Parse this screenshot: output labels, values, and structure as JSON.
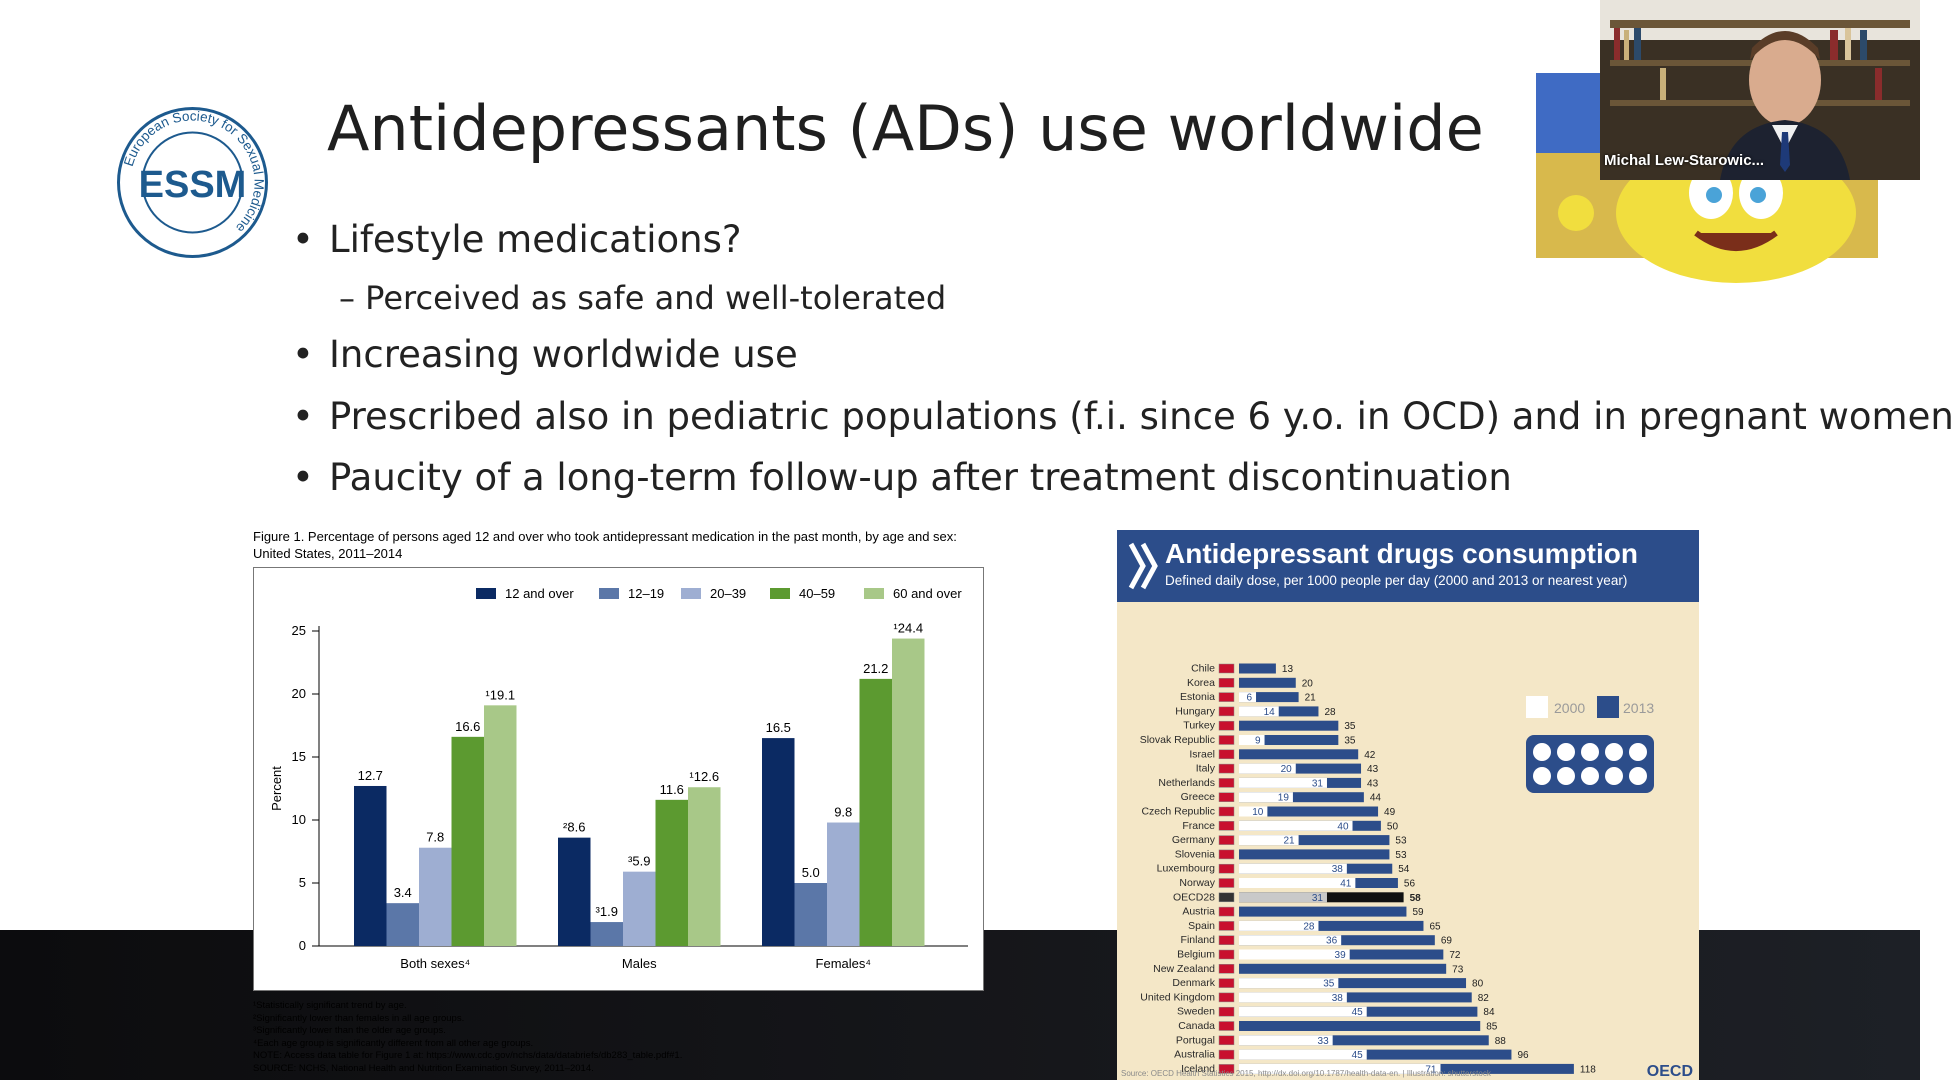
{
  "slide": {
    "title": "Antidepressants (ADs) use worldwide",
    "logo_text": "European Society for Sexual Medicine",
    "logo_letters": "ESSM",
    "bullets": [
      {
        "text": "Lifestyle medications?",
        "sub": "– Perceived as safe and well-tolerated"
      },
      {
        "text": "Increasing worldwide use"
      },
      {
        "text": "Prescribed also in pediatric populations (f.i. since 6 y.o. in OCD) and in pregnant women"
      },
      {
        "text": "Paucity of a long-term follow-up after treatment discontinuation"
      }
    ]
  },
  "us_figure": {
    "caption": "Figure 1. Percentage of persons aged 12 and over who took antidepressant medication in the past month, by age and sex: United States, 2011–2014",
    "notes": [
      "¹Statistically significant trend by age.",
      "²Significantly lower than females in all age groups.",
      "³Significantly lower than the older age groups.",
      "⁴Each age group is significantly different from all other age groups.",
      "NOTE: Access data table for Figure 1 at: https://www.cdc.gov/nchs/data/databriefs/db283_table.pdf#1.",
      "SOURCE: NCHS, National Health and Nutrition Examination Survey, 2011–2014."
    ]
  },
  "oecd_figure": {
    "title": "Antidepressant drugs consumption",
    "subtitle": "Defined daily dose, per 1000 people per day (2000 and 2013 or nearest year)",
    "legend_2000": "2000",
    "legend_2013": "2013",
    "source": "Source: OECD Health Statistics 2015, http://dx.doi.org/10.1787/health-data-en. | Illustration: shutterstock",
    "brand": "OECD"
  },
  "webcam": {
    "participant_name": "Michal Lew-Starowic..."
  },
  "chart_data": [
    {
      "type": "bar",
      "categories": [
        "Both sexes⁴",
        "Males",
        "Females⁴"
      ],
      "series": [
        {
          "name": "12 and over",
          "color": "#0b2a63",
          "values": [
            12.7,
            8.6,
            16.5
          ],
          "labels": [
            "12.7",
            "²8.6",
            "16.5"
          ]
        },
        {
          "name": "12–19",
          "color": "#5b77a8",
          "values": [
            3.4,
            1.9,
            5.0
          ],
          "labels": [
            "3.4",
            "³1.9",
            "5.0"
          ]
        },
        {
          "name": "20–39",
          "color": "#9eaed2",
          "values": [
            7.8,
            5.9,
            9.8
          ],
          "labels": [
            "7.8",
            "³5.9",
            "9.8"
          ]
        },
        {
          "name": "40–59",
          "color": "#5c9a30",
          "values": [
            16.6,
            11.6,
            21.2
          ],
          "labels": [
            "16.6",
            "11.6",
            "21.2"
          ]
        },
        {
          "name": "60 and over",
          "color": "#a8c888",
          "values": [
            19.1,
            12.6,
            24.4
          ],
          "labels": [
            "¹19.1",
            "¹12.6",
            "¹24.4"
          ]
        }
      ],
      "xlabel": "",
      "ylabel": "Percent",
      "ylim": [
        0,
        25
      ],
      "yticks": [
        0,
        5,
        10,
        15,
        20,
        25
      ],
      "legend": "top"
    },
    {
      "type": "bar",
      "orientation": "horizontal",
      "categories": [
        "Chile",
        "Korea",
        "Estonia",
        "Hungary",
        "Turkey",
        "Slovak Republic",
        "Israel",
        "Italy",
        "Netherlands",
        "Greece",
        "Czech Republic",
        "France",
        "Germany",
        "Slovenia",
        "Luxembourg",
        "Norway",
        "OECD28",
        "Austria",
        "Spain",
        "Finland",
        "Belgium",
        "New Zealand",
        "Denmark",
        "United Kingdom",
        "Sweden",
        "Canada",
        "Portugal",
        "Australia",
        "Iceland"
      ],
      "series": [
        {
          "name": "2013",
          "values": [
            13,
            20,
            21,
            28,
            35,
            35,
            42,
            43,
            43,
            44,
            49,
            50,
            53,
            53,
            54,
            56,
            58,
            59,
            65,
            69,
            72,
            73,
            80,
            82,
            84,
            85,
            88,
            96,
            118
          ]
        },
        {
          "name": "2000",
          "values": [
            null,
            null,
            6,
            14,
            null,
            9,
            null,
            20,
            31,
            19,
            10,
            40,
            21,
            null,
            38,
            41,
            31,
            null,
            28,
            36,
            39,
            null,
            35,
            38,
            45,
            null,
            33,
            45,
            71
          ]
        }
      ]
    }
  ]
}
